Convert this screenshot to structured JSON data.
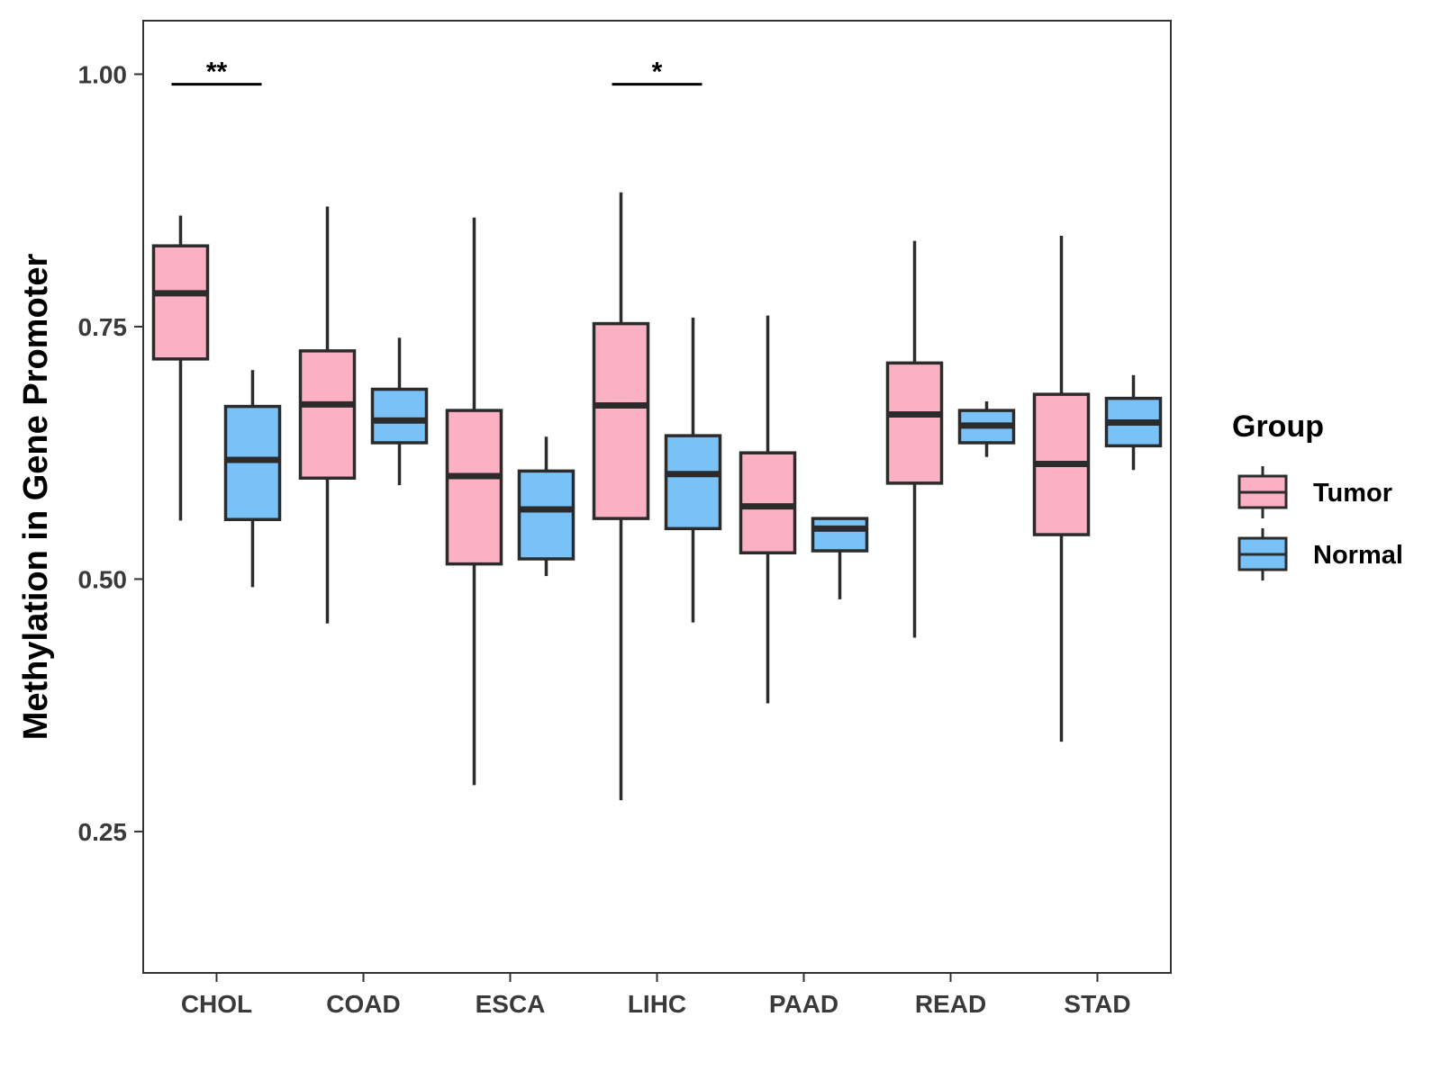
{
  "chart_data": {
    "type": "box",
    "title": "",
    "xlabel": "",
    "ylabel": "Methylation in Gene Promoter",
    "ylim": [
      0.11,
      1.053
    ],
    "yticks": [
      0.25,
      0.5,
      0.75,
      1.0
    ],
    "ytick_labels": [
      "0.25",
      "0.50",
      "0.75",
      "1.00"
    ],
    "categories": [
      "CHOL",
      "COAD",
      "ESCA",
      "LIHC",
      "PAAD",
      "READ",
      "STAD"
    ],
    "grid": false,
    "legend": {
      "title": "Group",
      "position": "right",
      "entries": [
        {
          "name": "Tumor",
          "color": "#FBB1C3"
        },
        {
          "name": "Normal",
          "color": "#79C2F7"
        }
      ]
    },
    "series": [
      {
        "name": "Tumor",
        "color": "#FBB1C3",
        "boxes": [
          {
            "category": "CHOL",
            "whisker_low": 0.558,
            "q1": 0.718,
            "median": 0.783,
            "q3": 0.83,
            "whisker_high": 0.86
          },
          {
            "category": "COAD",
            "whisker_low": 0.456,
            "q1": 0.6,
            "median": 0.673,
            "q3": 0.726,
            "whisker_high": 0.869
          },
          {
            "category": "ESCA",
            "whisker_low": 0.296,
            "q1": 0.515,
            "median": 0.602,
            "q3": 0.667,
            "whisker_high": 0.858
          },
          {
            "category": "LIHC",
            "whisker_low": 0.281,
            "q1": 0.56,
            "median": 0.672,
            "q3": 0.753,
            "whisker_high": 0.883
          },
          {
            "category": "PAAD",
            "whisker_low": 0.377,
            "q1": 0.526,
            "median": 0.572,
            "q3": 0.625,
            "whisker_high": 0.761
          },
          {
            "category": "READ",
            "whisker_low": 0.442,
            "q1": 0.595,
            "median": 0.663,
            "q3": 0.714,
            "whisker_high": 0.835
          },
          {
            "category": "STAD",
            "whisker_low": 0.339,
            "q1": 0.544,
            "median": 0.614,
            "q3": 0.683,
            "whisker_high": 0.84
          }
        ]
      },
      {
        "name": "Normal",
        "color": "#79C2F7",
        "boxes": [
          {
            "category": "CHOL",
            "whisker_low": 0.492,
            "q1": 0.559,
            "median": 0.618,
            "q3": 0.671,
            "whisker_high": 0.707
          },
          {
            "category": "COAD",
            "whisker_low": 0.593,
            "q1": 0.635,
            "median": 0.657,
            "q3": 0.688,
            "whisker_high": 0.739
          },
          {
            "category": "ESCA",
            "whisker_low": 0.503,
            "q1": 0.52,
            "median": 0.569,
            "q3": 0.607,
            "whisker_high": 0.641
          },
          {
            "category": "LIHC",
            "whisker_low": 0.457,
            "q1": 0.55,
            "median": 0.604,
            "q3": 0.642,
            "whisker_high": 0.759
          },
          {
            "category": "PAAD",
            "whisker_low": 0.48,
            "q1": 0.528,
            "median": 0.55,
            "q3": 0.56,
            "whisker_high": 0.56
          },
          {
            "category": "READ",
            "whisker_low": 0.621,
            "q1": 0.635,
            "median": 0.652,
            "q3": 0.667,
            "whisker_high": 0.676
          },
          {
            "category": "STAD",
            "whisker_low": 0.608,
            "q1": 0.632,
            "median": 0.655,
            "q3": 0.679,
            "whisker_high": 0.702
          }
        ]
      }
    ],
    "annotations": [
      {
        "category": "CHOL",
        "label": "**",
        "y": 0.99
      },
      {
        "category": "LIHC",
        "label": "*",
        "y": 0.99
      }
    ]
  }
}
